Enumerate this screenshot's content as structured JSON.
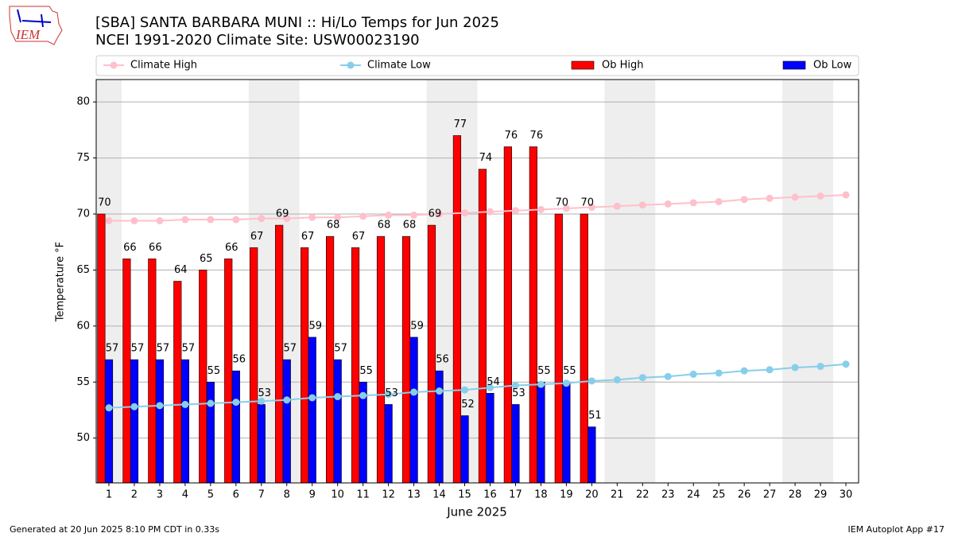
{
  "logo_text": "IEM",
  "footer": {
    "left": "Generated at 20 Jun 2025 8:10 PM CDT in 0.33s",
    "right": "IEM Autoplot App #17"
  },
  "chart_data": {
    "type": "bar",
    "title": "[SBA] SANTA BARBARA MUNI :: Hi/Lo Temps for Jun 2025",
    "subtitle": "NCEI 1991-2020 Climate Site: USW00023190",
    "x_label": "June 2025",
    "y_label": "Temperature °F",
    "x": [
      1,
      2,
      3,
      4,
      5,
      6,
      7,
      8,
      9,
      10,
      11,
      12,
      13,
      14,
      15,
      16,
      17,
      18,
      19,
      20,
      21,
      22,
      23,
      24,
      25,
      26,
      27,
      28,
      29,
      30
    ],
    "xlim": [
      0.5,
      30.5
    ],
    "xticks": [
      1,
      2,
      3,
      4,
      5,
      6,
      7,
      8,
      9,
      10,
      11,
      12,
      13,
      14,
      15,
      16,
      17,
      18,
      19,
      20,
      21,
      22,
      23,
      24,
      25,
      26,
      27,
      28,
      29,
      30
    ],
    "ylim": [
      46,
      82
    ],
    "yticks": [
      50,
      55,
      60,
      65,
      70,
      75,
      80
    ],
    "grid": true,
    "legend": "top",
    "shaded_days": [
      1,
      7,
      8,
      14,
      15,
      21,
      22,
      28,
      29
    ],
    "series": [
      {
        "name": "Climate High",
        "type": "line",
        "color": "#ffc0cb",
        "values": [
          69.4,
          69.4,
          69.4,
          69.5,
          69.5,
          69.5,
          69.6,
          69.6,
          69.7,
          69.7,
          69.8,
          69.9,
          69.9,
          70.0,
          70.1,
          70.2,
          70.3,
          70.4,
          70.5,
          70.6,
          70.7,
          70.8,
          70.9,
          71.0,
          71.1,
          71.3,
          71.4,
          71.5,
          71.6,
          71.7
        ]
      },
      {
        "name": "Climate Low",
        "type": "line",
        "color": "#87ceeb",
        "values": [
          52.7,
          52.8,
          52.9,
          53.0,
          53.1,
          53.2,
          53.3,
          53.4,
          53.6,
          53.7,
          53.8,
          53.9,
          54.1,
          54.2,
          54.3,
          54.5,
          54.7,
          54.8,
          54.9,
          55.1,
          55.2,
          55.4,
          55.5,
          55.7,
          55.8,
          56.0,
          56.1,
          56.3,
          56.4,
          56.6
        ]
      },
      {
        "name": "Ob High",
        "type": "bar",
        "color": "#ff0000",
        "values": [
          70,
          66,
          66,
          64,
          65,
          66,
          67,
          69,
          67,
          68,
          67,
          68,
          68,
          69,
          77,
          74,
          76,
          76,
          70,
          70,
          null,
          null,
          null,
          null,
          null,
          null,
          null,
          null,
          null,
          null
        ]
      },
      {
        "name": "Ob Low",
        "type": "bar",
        "color": "#0000ff",
        "values": [
          57,
          57,
          57,
          57,
          55,
          56,
          53,
          57,
          59,
          57,
          55,
          53,
          59,
          56,
          52,
          54,
          53,
          55,
          55,
          51,
          null,
          null,
          null,
          null,
          null,
          null,
          null,
          null,
          null,
          null
        ]
      }
    ]
  }
}
